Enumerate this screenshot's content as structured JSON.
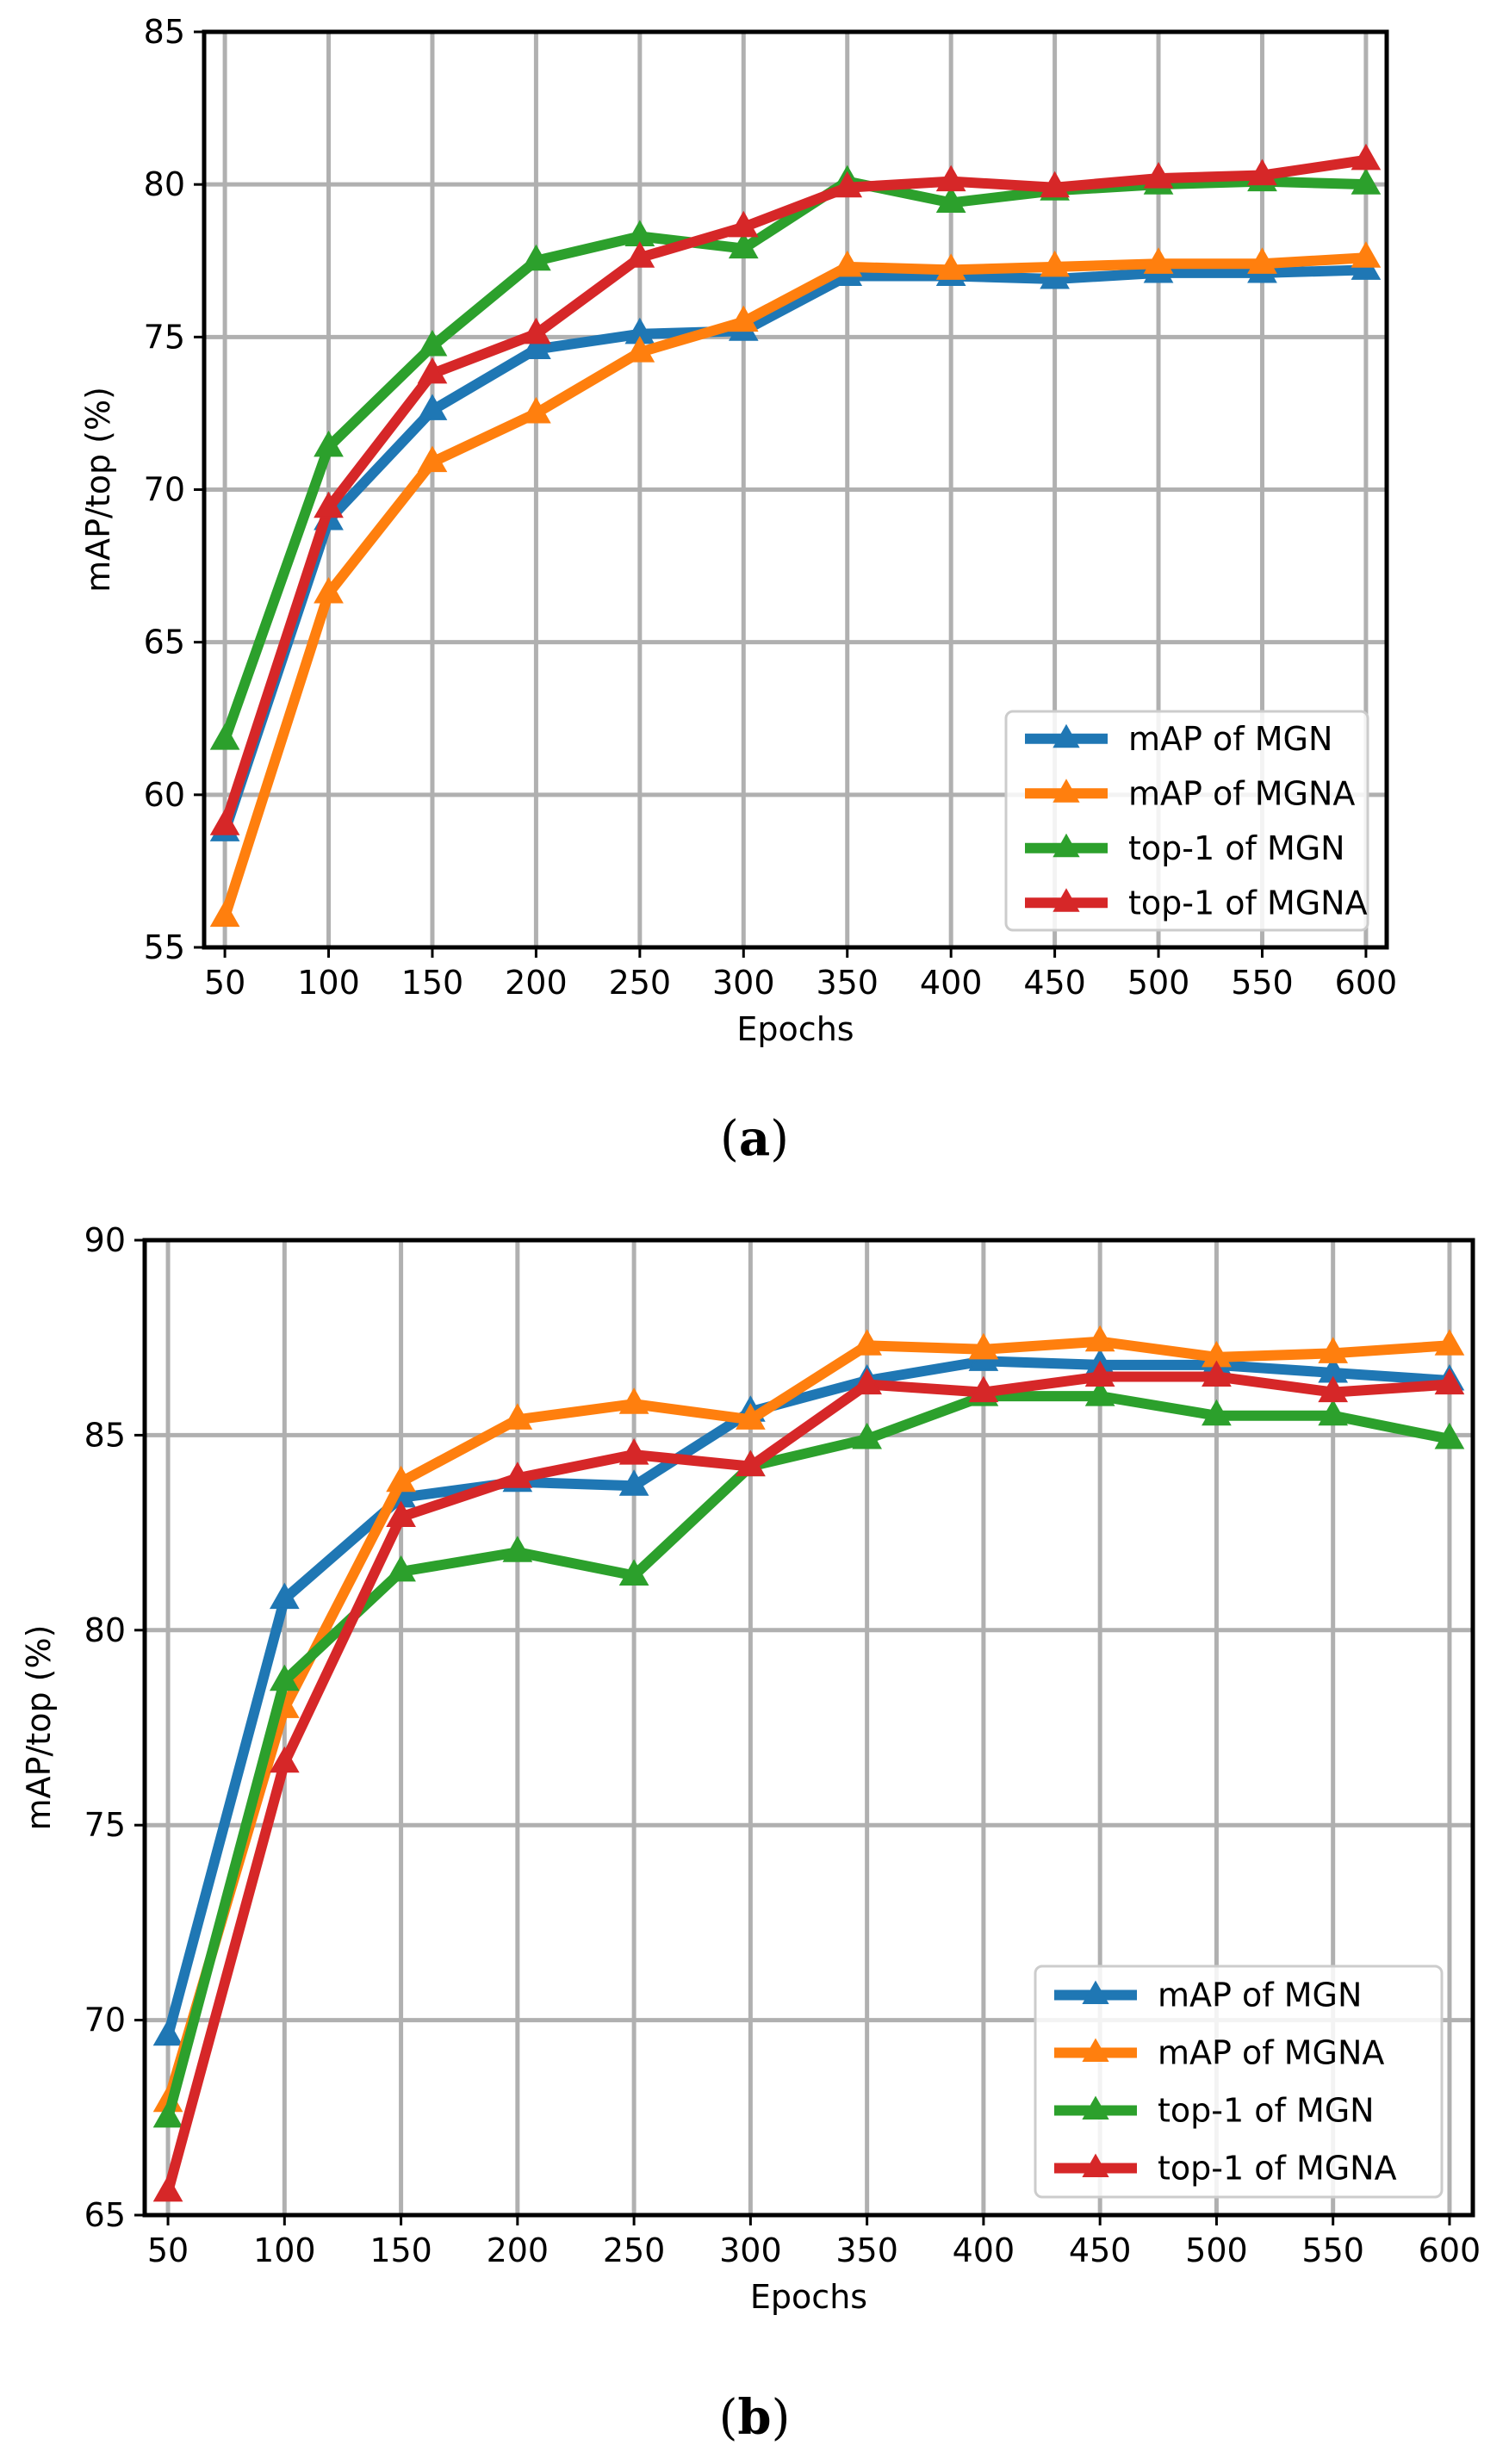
{
  "chart_data": [
    {
      "type": "line",
      "panel_label": "(a)",
      "caption_letter": "a",
      "xlabel": "Epochs",
      "ylabel": "mAP/top (%)",
      "xlim": [
        40,
        610
      ],
      "ylim": [
        55,
        85
      ],
      "xticks": [
        50,
        100,
        150,
        200,
        250,
        300,
        350,
        400,
        450,
        500,
        550,
        600
      ],
      "yticks": [
        55,
        60,
        65,
        70,
        75,
        80,
        85
      ],
      "grid": true,
      "legend_position": "lower-right",
      "x": [
        50,
        100,
        150,
        200,
        250,
        300,
        350,
        400,
        450,
        500,
        550,
        600
      ],
      "series": [
        {
          "name": "mAP of MGN",
          "color": "#1f77b4",
          "values": [
            58.8,
            69.0,
            72.6,
            74.6,
            75.1,
            75.2,
            77.0,
            77.0,
            76.9,
            77.1,
            77.1,
            77.2
          ]
        },
        {
          "name": "mAP of MGNA",
          "color": "#ff7f0e",
          "values": [
            56.0,
            66.6,
            70.9,
            72.5,
            74.5,
            75.5,
            77.3,
            77.2,
            77.3,
            77.4,
            77.4,
            77.6
          ]
        },
        {
          "name": "top-1 of MGN",
          "color": "#2ca02c",
          "values": [
            61.8,
            71.4,
            74.7,
            77.5,
            78.3,
            77.9,
            80.1,
            79.4,
            79.8,
            80.0,
            80.1,
            80.0
          ]
        },
        {
          "name": "top-1 of MGNA",
          "color": "#d62728",
          "values": [
            59.0,
            69.4,
            73.8,
            75.1,
            77.6,
            78.6,
            79.9,
            80.1,
            79.9,
            80.2,
            80.3,
            80.8
          ]
        }
      ]
    },
    {
      "type": "line",
      "panel_label": "(b)",
      "caption_letter": "b",
      "xlabel": "Epochs",
      "ylabel": "mAP/top (%)",
      "xlim": [
        40,
        610
      ],
      "ylim": [
        65,
        90
      ],
      "xticks": [
        50,
        100,
        150,
        200,
        250,
        300,
        350,
        400,
        450,
        500,
        550,
        600
      ],
      "yticks": [
        65,
        70,
        75,
        80,
        85,
        90
      ],
      "grid": true,
      "legend_position": "lower-right",
      "x": [
        50,
        100,
        150,
        200,
        250,
        300,
        350,
        400,
        450,
        500,
        550,
        600
      ],
      "series": [
        {
          "name": "mAP of MGN",
          "color": "#1f77b4",
          "values": [
            69.6,
            80.8,
            83.4,
            83.8,
            83.7,
            85.6,
            86.4,
            86.9,
            86.8,
            86.8,
            86.6,
            86.4
          ]
        },
        {
          "name": "mAP of MGNA",
          "color": "#ff7f0e",
          "values": [
            67.9,
            78.0,
            83.8,
            85.4,
            85.8,
            85.4,
            87.3,
            87.2,
            87.4,
            87.0,
            87.1,
            87.3
          ]
        },
        {
          "name": "top-1 of MGN",
          "color": "#2ca02c",
          "values": [
            67.5,
            78.7,
            81.5,
            82.0,
            81.4,
            84.2,
            84.9,
            86.0,
            86.0,
            85.5,
            85.5,
            84.9
          ]
        },
        {
          "name": "top-1 of MGNA",
          "color": "#d62728",
          "values": [
            65.6,
            76.6,
            82.9,
            83.9,
            84.5,
            84.2,
            86.3,
            86.1,
            86.5,
            86.5,
            86.1,
            86.3
          ]
        }
      ]
    }
  ]
}
